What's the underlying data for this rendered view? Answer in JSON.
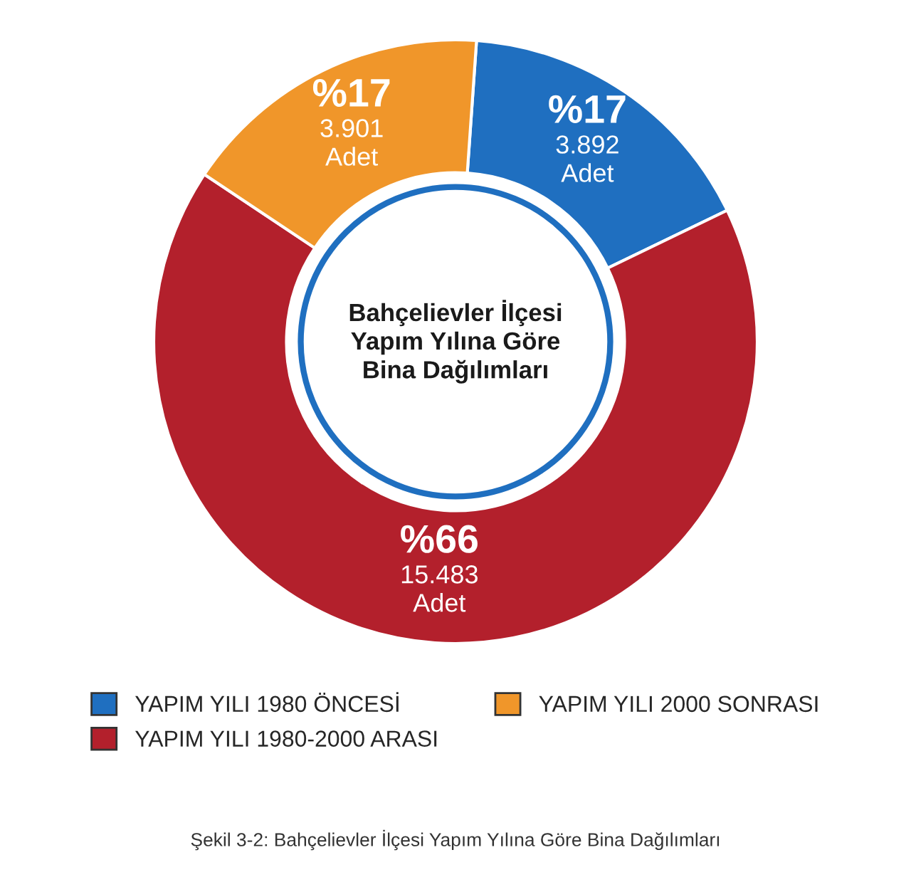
{
  "chart_data": {
    "type": "donut",
    "title": "Bahçelievler İlçesi\nYapım Yılına Göre\nBina Dağılımları",
    "categories": [
      "YAPIM YILI 1980 ÖNCESİ",
      "YAPIM YILI 1980-2000 ARASI",
      "YAPIM YILI 2000 SONRASI"
    ],
    "values": [
      3892,
      15483,
      3901
    ],
    "colors": [
      "#1f6fc0",
      "#b3202c",
      "#f0962a"
    ],
    "value_labels": [
      "%17\n3.892\nAdet",
      "%66\n15.483\nAdet",
      "%17\n3.901\nAdet"
    ],
    "legend": "bottom",
    "annotations": [
      "Şekil 3-2: Bahçelievler İlçesi Yapım Yılına Göre Bina Dağılımları"
    ]
  }
}
